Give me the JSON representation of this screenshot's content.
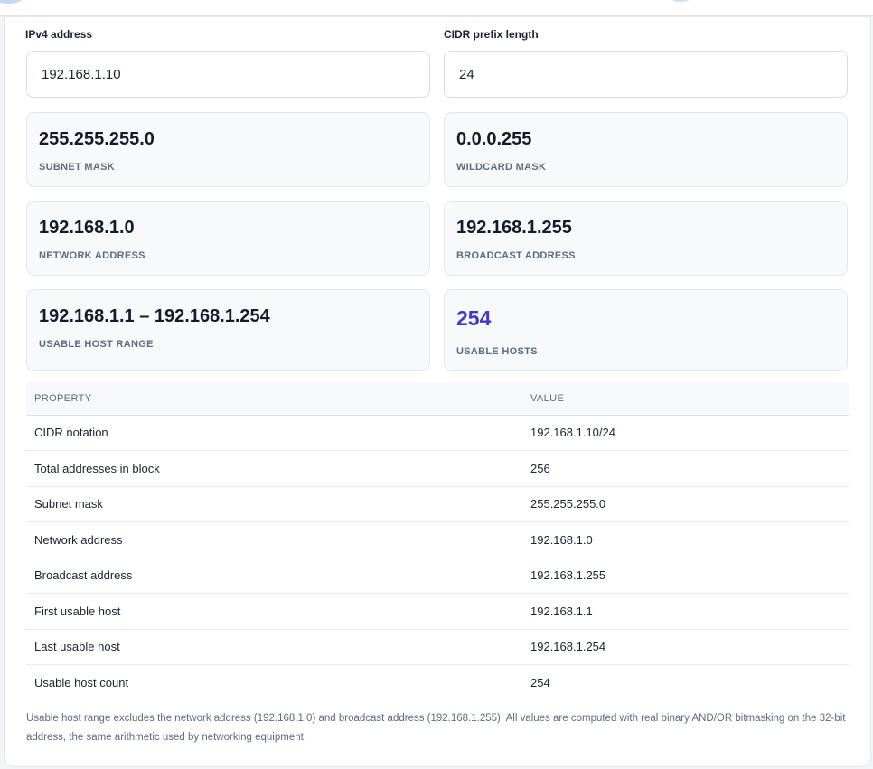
{
  "form": {
    "ip_label": "IPv4 address",
    "ip_value": "192.168.1.10",
    "cidr_label": "CIDR prefix length",
    "cidr_value": "24"
  },
  "stats": [
    {
      "value": "255.255.255.0",
      "label": "SUBNET MASK"
    },
    {
      "value": "0.0.0.255",
      "label": "WILDCARD MASK"
    },
    {
      "value": "192.168.1.0",
      "label": "NETWORK ADDRESS"
    },
    {
      "value": "192.168.1.255",
      "label": "BROADCAST ADDRESS"
    },
    {
      "value": "192.168.1.1 – 192.168.1.254",
      "label": "USABLE HOST RANGE"
    },
    {
      "value": "254",
      "label": "USABLE HOSTS"
    }
  ],
  "accent_color": "#4338ca",
  "table": {
    "headers": [
      "PROPERTY",
      "VALUE"
    ],
    "rows": [
      {
        "property": "CIDR notation",
        "value": "192.168.1.10/24"
      },
      {
        "property": "Total addresses in block",
        "value": "256"
      },
      {
        "property": "Subnet mask",
        "value": "255.255.255.0"
      },
      {
        "property": "Network address",
        "value": "192.168.1.0"
      },
      {
        "property": "Broadcast address",
        "value": "192.168.1.255"
      },
      {
        "property": "First usable host",
        "value": "192.168.1.1"
      },
      {
        "property": "Last usable host",
        "value": "192.168.1.254"
      },
      {
        "property": "Usable host count",
        "value": "254"
      }
    ]
  },
  "note": "Usable host range excludes the network address (192.168.1.0) and broadcast address (192.168.1.255). All values are computed with real binary AND/OR bitmasking on the 32-bit address, the same arithmetic used by networking equipment."
}
